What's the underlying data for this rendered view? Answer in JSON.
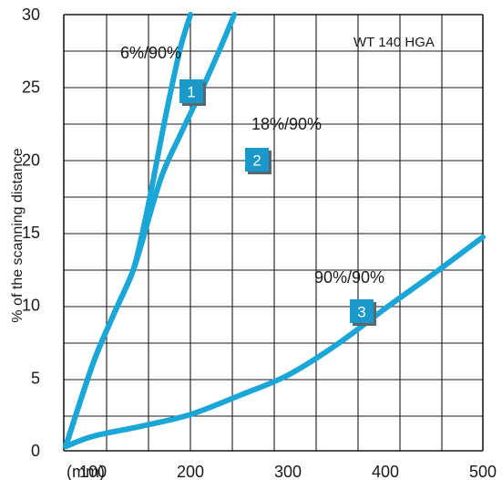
{
  "chart_data": {
    "type": "line",
    "title": "",
    "model_label": "WT 140 HGA",
    "xlabel": "(mm)",
    "ylabel": "% of the scanning distance",
    "xlim": [
      70,
      500
    ],
    "ylim": [
      0,
      30
    ],
    "x_ticks": [
      100,
      200,
      300,
      400,
      500
    ],
    "y_ticks": [
      0,
      5,
      10,
      15,
      20,
      25,
      30
    ],
    "grid": true,
    "colors": {
      "line": "#1aa6d6",
      "badge": "#1a98c9",
      "badge_shadow": "#5a6770",
      "grid": "#1a1a1a"
    },
    "series": [
      {
        "name": "6%/90%",
        "badge": "1",
        "x": [
          72,
          100,
          120,
          140,
          150,
          160,
          170,
          180,
          190,
          200
        ],
        "y": [
          0.3,
          6.0,
          9.2,
          12.2,
          14.8,
          18.0,
          21.5,
          24.8,
          27.8,
          30.0
        ]
      },
      {
        "name": "18%/90%",
        "badge": "2",
        "x": [
          72,
          100,
          120,
          140,
          150,
          170,
          190,
          210,
          230,
          245
        ],
        "y": [
          0.3,
          6.0,
          9.2,
          12.2,
          14.3,
          18.8,
          21.8,
          24.6,
          27.6,
          30.0
        ]
      },
      {
        "name": "90%/90%",
        "badge": "3",
        "x": [
          72,
          100,
          150,
          200,
          250,
          300,
          350,
          400,
          450,
          500
        ],
        "y": [
          0.3,
          1.0,
          1.7,
          2.5,
          3.8,
          5.2,
          7.3,
          9.8,
          12.2,
          14.7
        ]
      }
    ]
  }
}
